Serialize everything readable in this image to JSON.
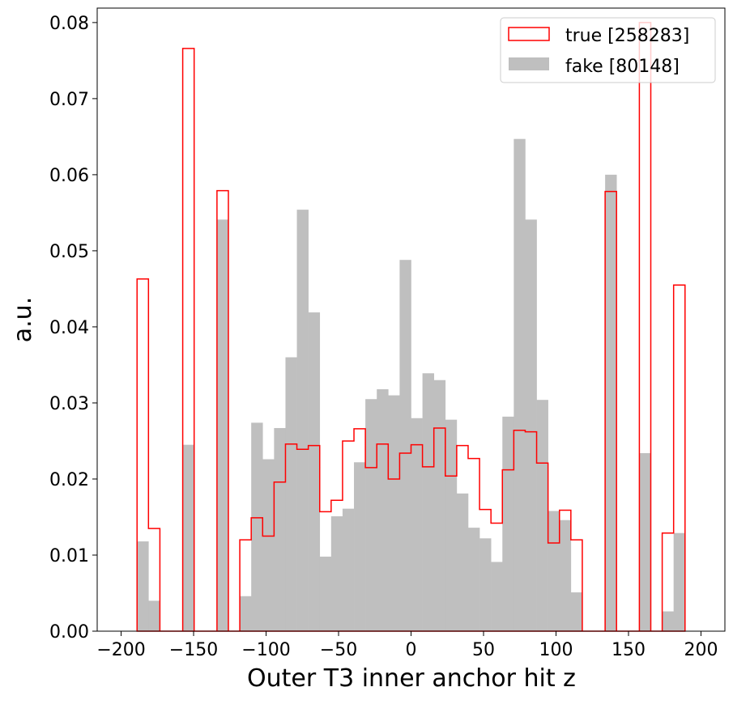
{
  "chart_data": {
    "type": "bar",
    "subtype": "histogram",
    "title": "",
    "xlabel": "Outer T3 inner anchor hit z",
    "ylabel": "a.u.",
    "xlim": [
      -216.5,
      216.5
    ],
    "ylim": [
      0,
      0.0819
    ],
    "bin_range": [
      -189,
      189
    ],
    "n_bins": 48,
    "xticks": [
      -200,
      -150,
      -100,
      -50,
      0,
      50,
      100,
      150,
      200
    ],
    "xtick_labels": [
      "−200",
      "−150",
      "−100",
      "−50",
      "0",
      "50",
      "100",
      "150",
      "200"
    ],
    "yticks": [
      0,
      0.01,
      0.02,
      0.03,
      0.04,
      0.05,
      0.06,
      0.07,
      0.08
    ],
    "ytick_labels": [
      "0.00",
      "0.01",
      "0.02",
      "0.03",
      "0.04",
      "0.05",
      "0.06",
      "0.07",
      "0.08"
    ],
    "grid": false,
    "legend_position": "top-right",
    "series": [
      {
        "name": "true [258283]",
        "style": "step",
        "color": "#ff0000",
        "values": [
          0.0463,
          0.0135,
          0,
          0,
          0.0766,
          0,
          0,
          0.0579,
          0,
          0.012,
          0.0149,
          0.0125,
          0.0196,
          0.0246,
          0.0239,
          0.0244,
          0.0157,
          0.0172,
          0.025,
          0.0266,
          0.0215,
          0.0246,
          0.02,
          0.0234,
          0.0245,
          0.0216,
          0.0267,
          0.0204,
          0.0244,
          0.0227,
          0.016,
          0.0142,
          0.0212,
          0.0264,
          0.0262,
          0.0221,
          0.0116,
          0.0159,
          0.012,
          0,
          0,
          0.0578,
          0,
          0,
          0.08,
          0,
          0.0129,
          0.0455
        ]
      },
      {
        "name": "fake [80148]",
        "style": "filled",
        "color": "#bfbfbf",
        "values": [
          0.0118,
          0.004,
          0,
          0,
          0.0245,
          0,
          0,
          0.0541,
          0,
          0.0046,
          0.0274,
          0.0226,
          0.0267,
          0.036,
          0.0554,
          0.0419,
          0.0098,
          0.0151,
          0.0161,
          0.0222,
          0.0305,
          0.0318,
          0.031,
          0.0488,
          0.028,
          0.0339,
          0.033,
          0.0278,
          0.0181,
          0.0136,
          0.0122,
          0.0091,
          0.0282,
          0.0647,
          0.0541,
          0.0304,
          0.0158,
          0.0146,
          0.0051,
          0,
          0,
          0.06,
          0,
          0,
          0.0234,
          0,
          0.0026,
          0.0129
        ]
      }
    ]
  }
}
